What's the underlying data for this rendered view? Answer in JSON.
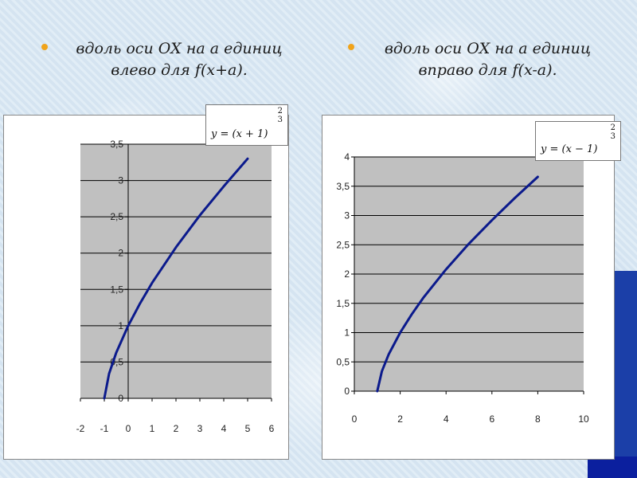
{
  "bullets": [
    {
      "line1": "вдоль оси ОХ на а единиц",
      "line2": "влево для f(x+a)."
    },
    {
      "line1": "вдоль оси ОХ на а единиц",
      "line2": "вправо для f(x-a)."
    }
  ],
  "formulas": [
    {
      "main": "y = (x + 1)",
      "num": "2",
      "den": "3"
    },
    {
      "main": "y = (x − 1)",
      "num": "2",
      "den": "3"
    }
  ],
  "colors": {
    "line": "#0b1a8c",
    "plot_bg": "#c0c0c0",
    "grid": "#000000",
    "accent": "#0b1f9e"
  },
  "chart_data": [
    {
      "type": "line",
      "title": "",
      "xlabel": "",
      "ylabel": "",
      "xlim": [
        -2,
        6
      ],
      "ylim": [
        0,
        3.5
      ],
      "xticks": [
        -2,
        -1,
        0,
        1,
        2,
        3,
        4,
        5,
        6
      ],
      "xtick_labels": [
        "-2",
        "-1",
        "0",
        "1",
        "2",
        "3",
        "4",
        "5",
        "6"
      ],
      "yticks": [
        0,
        0.5,
        1,
        1.5,
        2,
        2.5,
        3,
        3.5
      ],
      "ytick_labels": [
        "0",
        "0,5",
        "1",
        "1,5",
        "2",
        "2,5",
        "3",
        "3,5"
      ],
      "grid": true,
      "series": [
        {
          "x": [
            -1,
            -0.8,
            -0.5,
            0,
            0.5,
            1,
            2,
            3,
            4,
            5
          ],
          "y": [
            0,
            0.34,
            0.63,
            1,
            1.31,
            1.59,
            2.08,
            2.52,
            2.92,
            3.3
          ]
        }
      ]
    },
    {
      "type": "line",
      "title": "",
      "xlabel": "",
      "ylabel": "",
      "xlim": [
        0,
        10
      ],
      "ylim": [
        0,
        4
      ],
      "xticks": [
        0,
        2,
        4,
        6,
        8,
        10
      ],
      "xtick_labels": [
        "0",
        "2",
        "4",
        "6",
        "8",
        "10"
      ],
      "yticks": [
        0,
        0.5,
        1,
        1.5,
        2,
        2.5,
        3,
        3.5,
        4
      ],
      "ytick_labels": [
        "0",
        "0,5",
        "1",
        "1,5",
        "2",
        "2,5",
        "3",
        "3,5",
        "4"
      ],
      "grid": true,
      "series": [
        {
          "x": [
            1,
            1.2,
            1.5,
            2,
            2.5,
            3,
            4,
            5,
            6,
            7,
            8
          ],
          "y": [
            0,
            0.34,
            0.63,
            1,
            1.31,
            1.59,
            2.08,
            2.52,
            2.92,
            3.3,
            3.66
          ]
        }
      ]
    }
  ]
}
